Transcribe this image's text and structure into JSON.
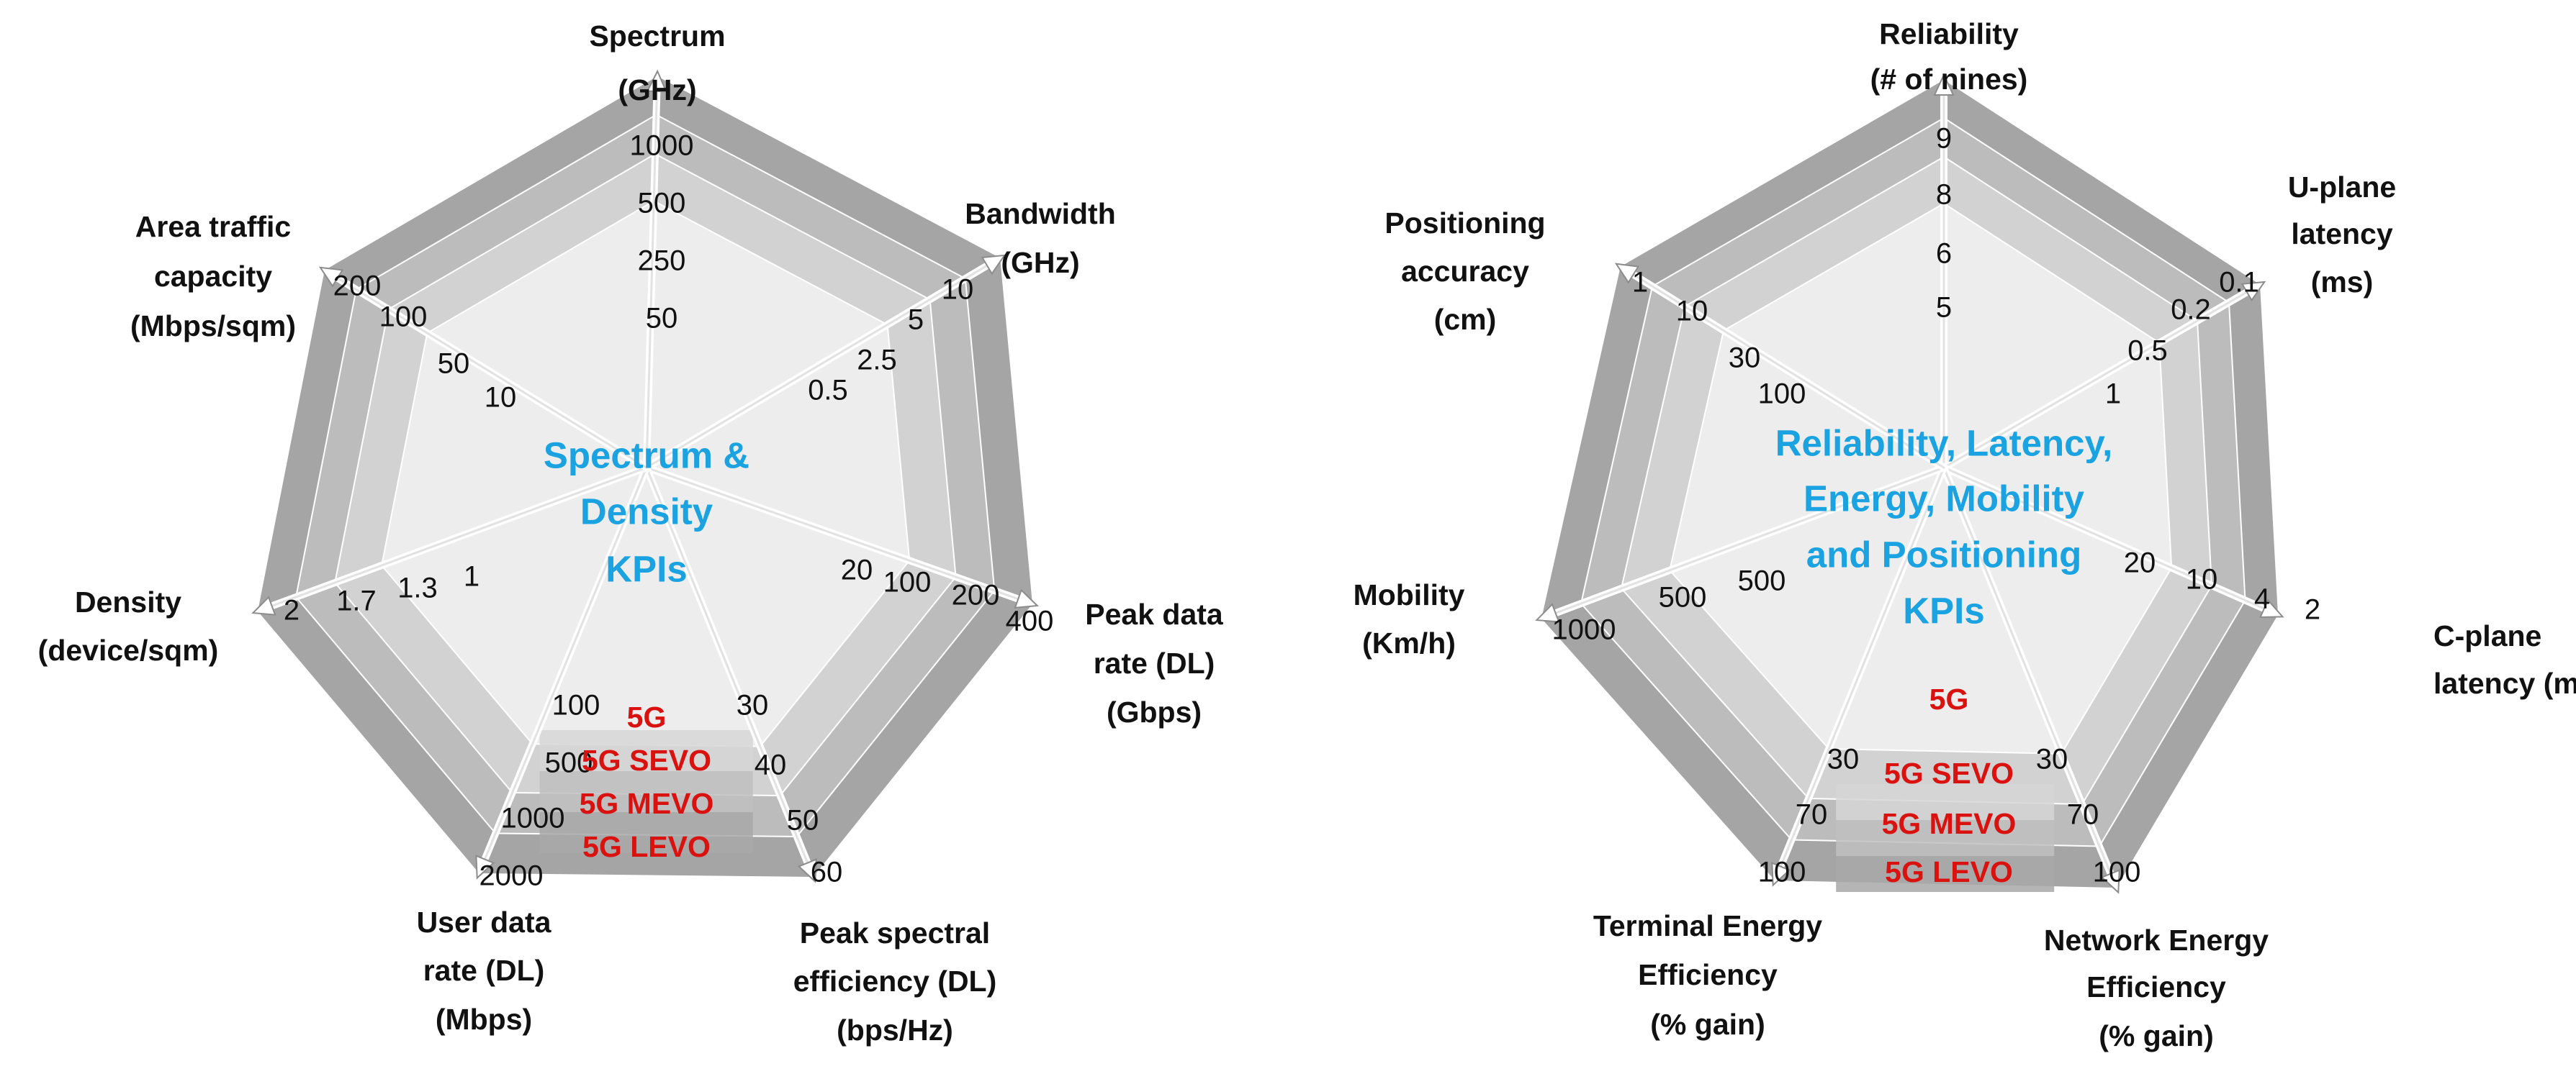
{
  "colors": {
    "ring_outer": "#a5a5a5",
    "ring_3": "#bcbcbc",
    "ring_2": "#d2d2d2",
    "ring_1": "#ededed",
    "band_2": "#d6d6d6",
    "band_3": "#c0c0c0",
    "band_4": "#a8a8a8",
    "center_text": "#1aa3e0",
    "generation_text": "#d9120f",
    "axis_line": "#ffffff"
  },
  "chart_data": [
    {
      "type": "radar",
      "title": "Spectrum & Density KPIs",
      "title_lines": [
        "Spectrum &",
        "Density",
        "KPIs"
      ],
      "levels": [
        "5G",
        "5G SEVO",
        "5G MEVO",
        "5G LEVO"
      ],
      "axes": [
        {
          "label_lines": [
            "Spectrum",
            "(GHz)"
          ],
          "ticks": [
            "50",
            "250",
            "500",
            "1000"
          ]
        },
        {
          "label_lines": [
            "Bandwidth",
            "(GHz)"
          ],
          "ticks": [
            "0.5",
            "2.5",
            "5",
            "10"
          ]
        },
        {
          "label_lines": [
            "Peak data",
            "rate (DL)",
            "(Gbps)"
          ],
          "ticks": [
            "20",
            "100",
            "200",
            "400"
          ]
        },
        {
          "label_lines": [
            "Peak spectral",
            "efficiency (DL)",
            "(bps/Hz)"
          ],
          "ticks": [
            "30",
            "40",
            "50",
            "60"
          ]
        },
        {
          "label_lines": [
            "User data",
            "rate (DL)",
            "(Mbps)"
          ],
          "ticks": [
            "100",
            "500",
            "1000",
            "2000"
          ]
        },
        {
          "label_lines": [
            "Density",
            "(device/sqm)"
          ],
          "ticks": [
            "1",
            "1.3",
            "1.7",
            "2"
          ]
        },
        {
          "label_lines": [
            "Area traffic",
            "capacity",
            "(Mbps/sqm)"
          ],
          "ticks": [
            "10",
            "50",
            "100",
            "200"
          ]
        }
      ]
    },
    {
      "type": "radar",
      "title": "Reliability, Latency, Energy, Mobility and Positioning KPIs",
      "title_lines": [
        "Reliability, Latency,",
        "Energy, Mobility",
        "and Positioning",
        "KPIs"
      ],
      "levels": [
        "5G",
        "5G SEVO",
        "5G MEVO",
        "5G LEVO"
      ],
      "axes": [
        {
          "label_lines": [
            "Reliability",
            "(# of nines)"
          ],
          "ticks": [
            "5",
            "6",
            "8",
            "9"
          ]
        },
        {
          "label_lines": [
            "U-plane",
            "latency",
            "(ms)"
          ],
          "ticks": [
            "1",
            "0.5",
            "0.2",
            "0.1"
          ]
        },
        {
          "label_lines": [
            "C-plane",
            "latency (ms)"
          ],
          "ticks": [
            "20",
            "10",
            "4",
            "2"
          ]
        },
        {
          "label_lines": [
            "Network Energy",
            "Efficiency",
            "(% gain)"
          ],
          "ticks": [
            "30",
            "70",
            "100"
          ]
        },
        {
          "label_lines": [
            "Terminal Energy",
            "Efficiency",
            "(% gain)"
          ],
          "ticks": [
            "30",
            "70",
            "100"
          ]
        },
        {
          "label_lines": [
            "Mobility",
            "(Km/h)"
          ],
          "ticks": [
            "500",
            "500",
            "1000"
          ]
        },
        {
          "label_lines": [
            "Positioning",
            "accuracy",
            "(cm)"
          ],
          "ticks": [
            "100",
            "30",
            "10",
            "1"
          ]
        }
      ]
    }
  ]
}
